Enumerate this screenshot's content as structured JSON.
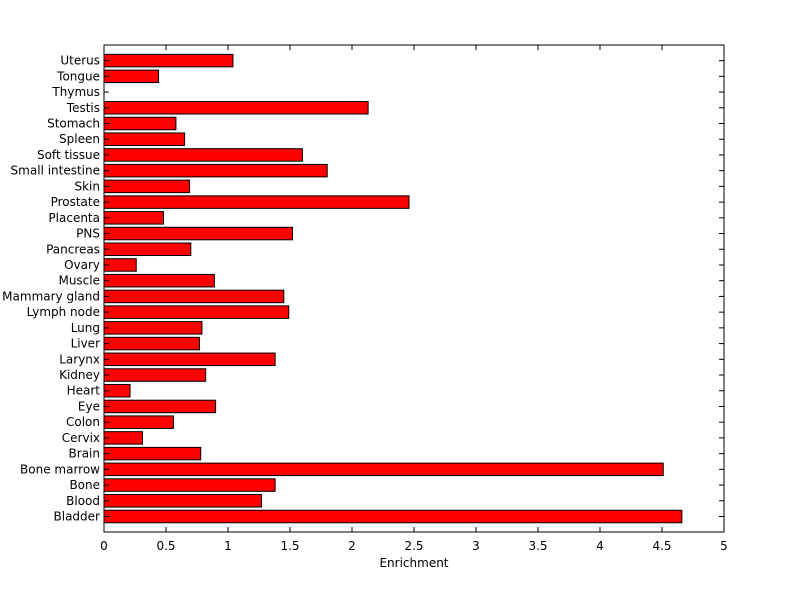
{
  "chart_data": {
    "type": "bar",
    "orientation": "horizontal",
    "title": "",
    "xlabel": "Enrichment",
    "ylabel": "",
    "xlim": [
      0,
      5
    ],
    "xticks": [
      "0",
      "0.5",
      "1",
      "1.5",
      "2",
      "2.5",
      "3",
      "3.5",
      "4",
      "4.5",
      "5"
    ],
    "grid": false,
    "legend": "none",
    "bar_color": "#ff0000",
    "categories": [
      "Bladder",
      "Blood",
      "Bone",
      "Bone marrow",
      "Brain",
      "Cervix",
      "Colon",
      "Eye",
      "Heart",
      "Kidney",
      "Larynx",
      "Liver",
      "Lung",
      "Lymph node",
      "Mammary gland",
      "Muscle",
      "Ovary",
      "Pancreas",
      "PNS",
      "Placenta",
      "Prostate",
      "Skin",
      "Small intestine",
      "Soft tissue",
      "Spleen",
      "Stomach",
      "Testis",
      "Thymus",
      "Tongue",
      "Uterus"
    ],
    "values": [
      4.66,
      1.27,
      1.38,
      4.51,
      0.78,
      0.31,
      0.56,
      0.9,
      0.21,
      0.82,
      1.38,
      0.77,
      0.79,
      1.49,
      1.45,
      0.89,
      0.26,
      0.7,
      1.52,
      0.48,
      2.46,
      0.69,
      1.8,
      1.6,
      0.65,
      0.58,
      2.13,
      0.0,
      0.44,
      1.04
    ]
  }
}
